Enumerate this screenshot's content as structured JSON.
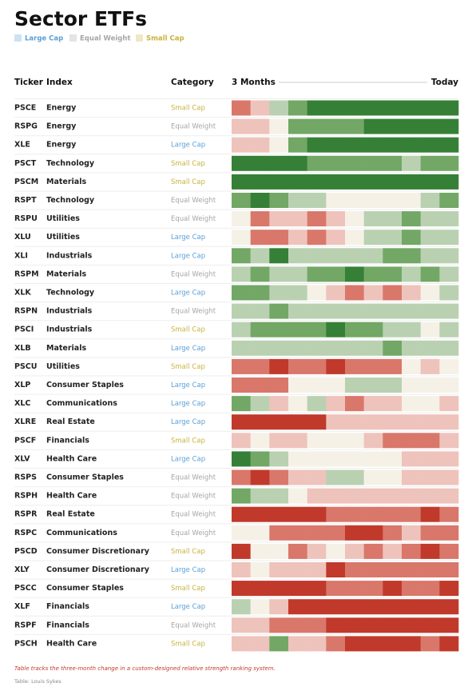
{
  "header": {
    "title": "Sector ETFs",
    "legend": [
      {
        "label": "Large Cap",
        "color": "#5b9fd6"
      },
      {
        "label": "Equal Weight",
        "color": "#a6a6a6"
      },
      {
        "label": "Small Cap",
        "color": "#c9b23f"
      }
    ]
  },
  "table": {
    "columns": [
      "Ticker",
      "Index",
      "Category",
      "3 Months",
      "Today"
    ],
    "color_scale": [
      {
        "value": -3,
        "color": "#c0392b"
      },
      {
        "value": -2,
        "color": "#d9776b"
      },
      {
        "value": -1,
        "color": "#eec3bb"
      },
      {
        "value": 0,
        "color": "#f5f1e6"
      },
      {
        "value": 1,
        "color": "#b9d1b1"
      },
      {
        "value": 2,
        "color": "#72a766"
      },
      {
        "value": 3,
        "color": "#367f36"
      }
    ],
    "rows": [
      {
        "ticker": "PSCE",
        "index": "Energy",
        "category": "Small Cap",
        "scores": [
          -2,
          -1,
          1,
          2,
          3,
          3,
          3,
          3,
          3,
          3,
          3,
          3
        ]
      },
      {
        "ticker": "RSPG",
        "index": "Energy",
        "category": "Equal Weight",
        "scores": [
          -1,
          -1,
          0,
          2,
          2,
          2,
          2,
          3,
          3,
          3,
          3,
          3
        ]
      },
      {
        "ticker": "XLE",
        "index": "Energy",
        "category": "Large Cap",
        "scores": [
          -1,
          -1,
          0,
          2,
          3,
          3,
          3,
          3,
          3,
          3,
          3,
          3
        ]
      },
      {
        "ticker": "PSCT",
        "index": "Technology",
        "category": "Small Cap",
        "scores": [
          3,
          3,
          3,
          3,
          2,
          2,
          2,
          2,
          2,
          1,
          2,
          2
        ]
      },
      {
        "ticker": "PSCM",
        "index": "Materials",
        "category": "Small Cap",
        "scores": [
          3,
          3,
          3,
          3,
          3,
          3,
          3,
          3,
          3,
          3,
          3,
          3
        ]
      },
      {
        "ticker": "RSPT",
        "index": "Technology",
        "category": "Equal Weight",
        "scores": [
          2,
          3,
          2,
          1,
          1,
          0,
          0,
          0,
          0,
          0,
          1,
          2
        ]
      },
      {
        "ticker": "RSPU",
        "index": "Utilities",
        "category": "Equal Weight",
        "scores": [
          0,
          -2,
          -1,
          -1,
          -2,
          -1,
          0,
          1,
          1,
          2,
          1,
          1
        ]
      },
      {
        "ticker": "XLU",
        "index": "Utilities",
        "category": "Large Cap",
        "scores": [
          0,
          -2,
          -2,
          -1,
          -2,
          -1,
          0,
          1,
          1,
          2,
          1,
          1
        ]
      },
      {
        "ticker": "XLI",
        "index": "Industrials",
        "category": "Large Cap",
        "scores": [
          2,
          1,
          3,
          1,
          1,
          1,
          1,
          1,
          2,
          2,
          1,
          1
        ]
      },
      {
        "ticker": "RSPM",
        "index": "Materials",
        "category": "Equal Weight",
        "scores": [
          1,
          2,
          1,
          1,
          2,
          2,
          3,
          2,
          2,
          1,
          2,
          1
        ]
      },
      {
        "ticker": "XLK",
        "index": "Technology",
        "category": "Large Cap",
        "scores": [
          2,
          2,
          1,
          1,
          0,
          -1,
          -2,
          -1,
          -2,
          -1,
          0,
          1
        ]
      },
      {
        "ticker": "RSPN",
        "index": "Industrials",
        "category": "Equal Weight",
        "scores": [
          1,
          1,
          2,
          1,
          1,
          1,
          1,
          1,
          1,
          1,
          1,
          1
        ]
      },
      {
        "ticker": "PSCI",
        "index": "Industrials",
        "category": "Small Cap",
        "scores": [
          1,
          2,
          2,
          2,
          2,
          3,
          2,
          2,
          1,
          1,
          0,
          1
        ]
      },
      {
        "ticker": "XLB",
        "index": "Materials",
        "category": "Large Cap",
        "scores": [
          1,
          1,
          1,
          1,
          1,
          1,
          1,
          1,
          2,
          1,
          1,
          1
        ]
      },
      {
        "ticker": "PSCU",
        "index": "Utilities",
        "category": "Small Cap",
        "scores": [
          -2,
          -2,
          -3,
          -2,
          -2,
          -3,
          -2,
          -2,
          -2,
          0,
          -1,
          0
        ]
      },
      {
        "ticker": "XLP",
        "index": "Consumer Staples",
        "category": "Large Cap",
        "scores": [
          -2,
          -2,
          -2,
          0,
          0,
          0,
          1,
          1,
          1,
          0,
          0,
          0
        ]
      },
      {
        "ticker": "XLC",
        "index": "Communications",
        "category": "Large Cap",
        "scores": [
          2,
          1,
          -1,
          0,
          1,
          -1,
          -2,
          -1,
          -1,
          0,
          0,
          -1
        ]
      },
      {
        "ticker": "XLRE",
        "index": "Real Estate",
        "category": "Large Cap",
        "scores": [
          -3,
          -3,
          -3,
          -3,
          -3,
          -1,
          -1,
          -1,
          -1,
          -1,
          -1,
          -1
        ]
      },
      {
        "ticker": "PSCF",
        "index": "Financials",
        "category": "Small Cap",
        "scores": [
          -1,
          0,
          -1,
          -1,
          0,
          0,
          0,
          -1,
          -2,
          -2,
          -2,
          -1
        ]
      },
      {
        "ticker": "XLV",
        "index": "Health Care",
        "category": "Large Cap",
        "scores": [
          3,
          2,
          1,
          0,
          0,
          0,
          0,
          0,
          0,
          -1,
          -1,
          -1
        ]
      },
      {
        "ticker": "RSPS",
        "index": "Consumer Staples",
        "category": "Equal Weight",
        "scores": [
          -2,
          -3,
          -2,
          -1,
          -1,
          1,
          1,
          0,
          0,
          -1,
          -1,
          -1
        ]
      },
      {
        "ticker": "RSPH",
        "index": "Health Care",
        "category": "Equal Weight",
        "scores": [
          2,
          1,
          1,
          0,
          -1,
          -1,
          -1,
          -1,
          -1,
          -1,
          -1,
          -1
        ]
      },
      {
        "ticker": "RSPR",
        "index": "Real Estate",
        "category": "Equal Weight",
        "scores": [
          -3,
          -3,
          -3,
          -3,
          -3,
          -2,
          -2,
          -2,
          -2,
          -2,
          -3,
          -2
        ]
      },
      {
        "ticker": "RSPC",
        "index": "Communications",
        "category": "Equal Weight",
        "scores": [
          0,
          0,
          -2,
          -2,
          -2,
          -2,
          -3,
          -3,
          -2,
          -1,
          -2,
          -2
        ]
      },
      {
        "ticker": "PSCD",
        "index": "Consumer Discretionary",
        "category": "Small Cap",
        "scores": [
          -3,
          0,
          0,
          -2,
          -1,
          0,
          -1,
          -2,
          -1,
          -2,
          -3,
          -2
        ]
      },
      {
        "ticker": "XLY",
        "index": "Consumer Discretionary",
        "category": "Large Cap",
        "scores": [
          -1,
          0,
          -1,
          -1,
          -1,
          -3,
          -2,
          -2,
          -2,
          -2,
          -2,
          -2
        ]
      },
      {
        "ticker": "PSCC",
        "index": "Consumer Staples",
        "category": "Small Cap",
        "scores": [
          -3,
          -3,
          -3,
          -3,
          -3,
          -2,
          -2,
          -2,
          -3,
          -2,
          -2,
          -3
        ]
      },
      {
        "ticker": "XLF",
        "index": "Financials",
        "category": "Large Cap",
        "scores": [
          1,
          0,
          -1,
          -3,
          -3,
          -3,
          -3,
          -3,
          -3,
          -3,
          -3,
          -3
        ]
      },
      {
        "ticker": "RSPF",
        "index": "Financials",
        "category": "Equal Weight",
        "scores": [
          -1,
          -1,
          -2,
          -2,
          -2,
          -3,
          -3,
          -3,
          -3,
          -3,
          -3,
          -3
        ]
      },
      {
        "ticker": "PSCH",
        "index": "Health Care",
        "category": "Small Cap",
        "scores": [
          -1,
          -1,
          2,
          -1,
          -1,
          -2,
          -3,
          -3,
          -3,
          -3,
          -2,
          -3
        ]
      }
    ]
  },
  "footer": {
    "note": "Table tracks the three-month change in a custom-designed relative strength ranking system.",
    "source": "Table: Louis Sykes"
  }
}
